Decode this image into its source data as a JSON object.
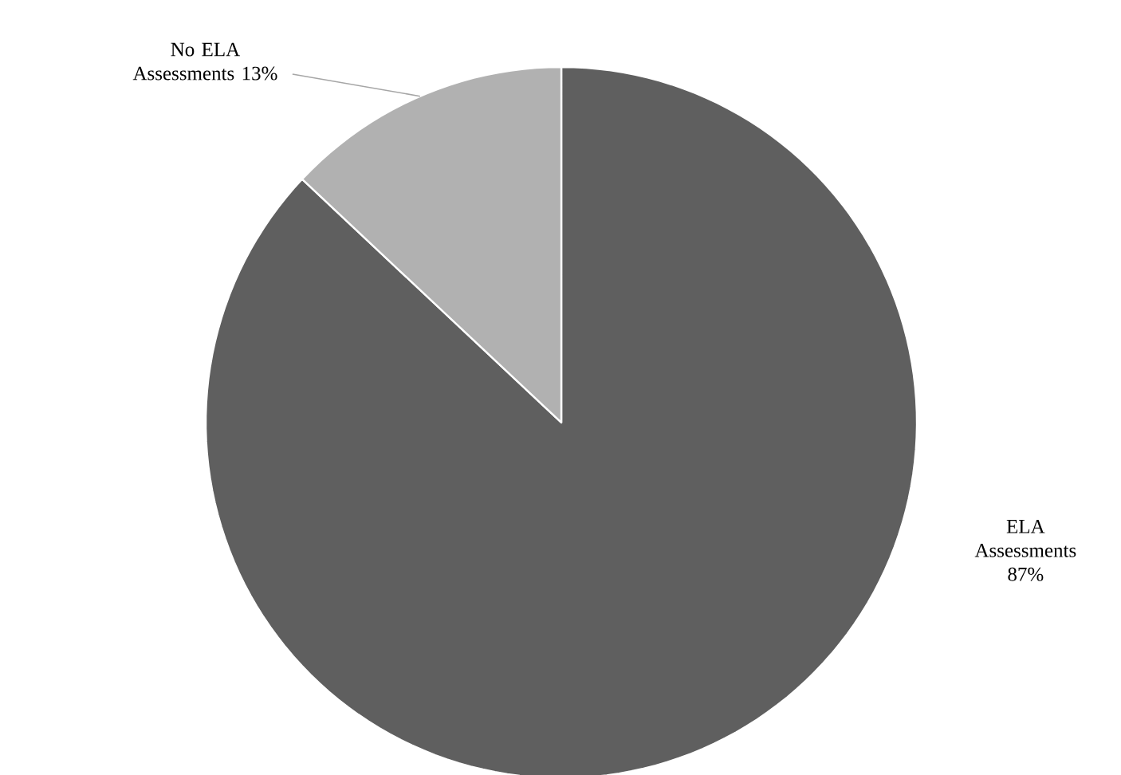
{
  "chart_data": {
    "type": "pie",
    "categories": [
      "ELA Assessments",
      "No ELA Assessments"
    ],
    "values": [
      87,
      13
    ],
    "value_labels": [
      "87%",
      "13%"
    ],
    "colors": [
      "#5f5f5f",
      "#b1b1b1"
    ]
  }
}
